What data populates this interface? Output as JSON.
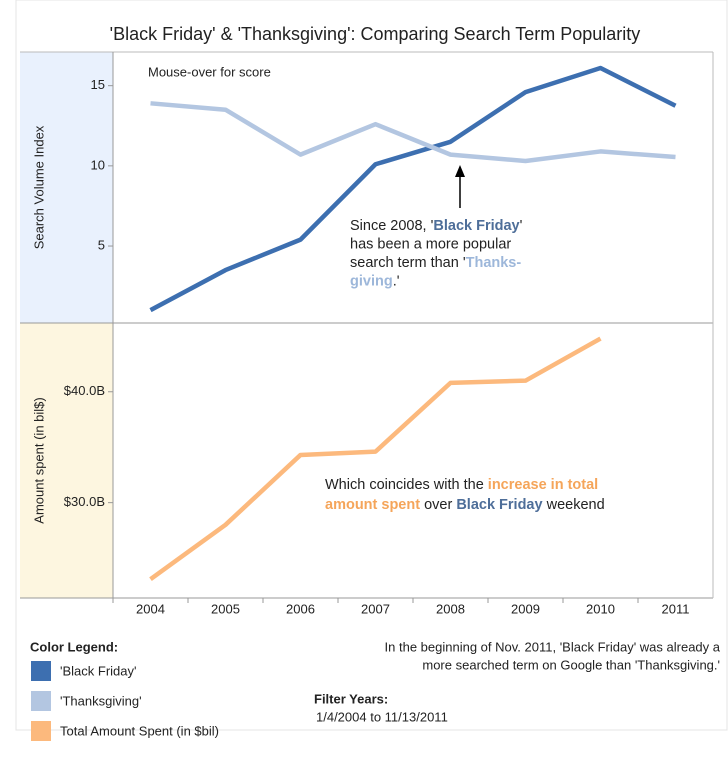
{
  "title": "'Black Friday' & 'Thanksgiving': Comparing Search Term Popularity",
  "chart_data": [
    {
      "type": "line",
      "y_label": "Search Volume Index",
      "note": "Mouse-over for score",
      "categories": [
        "2004",
        "2005",
        "2006",
        "2007",
        "2008",
        "2009",
        "2010",
        "2011"
      ],
      "series": [
        {
          "name": "'Black Friday'",
          "color": "#3d6fb0",
          "values": [
            1.0,
            3.5,
            5.4,
            10.1,
            11.5,
            14.6,
            16.1,
            13.75
          ]
        },
        {
          "name": "'Thanksgiving'",
          "color": "#b3c6e1",
          "values": [
            13.9,
            13.5,
            10.7,
            12.6,
            10.7,
            10.3,
            10.9,
            10.55
          ]
        }
      ],
      "ylim": [
        0.2,
        17.1
      ],
      "yticks": [
        5,
        10,
        15
      ],
      "annotation": [
        [
          {
            "text": "Since 2008, '"
          },
          {
            "text": "Black Friday",
            "color": "#4e6e99",
            "bold": true
          },
          {
            "text": "'"
          }
        ],
        [
          {
            "text": "has been a more popular"
          }
        ],
        [
          {
            "text": "search term than '"
          },
          {
            "text": "Thanks-",
            "color": "#9db7da",
            "bold": true
          }
        ],
        [
          {
            "text": "giving",
            "color": "#9db7da",
            "bold": true
          },
          {
            "text": ".'"
          }
        ]
      ]
    },
    {
      "type": "line",
      "y_label": "Amount spent (in bil$)",
      "categories": [
        "2004",
        "2005",
        "2006",
        "2007",
        "2008",
        "2009",
        "2010",
        "2011"
      ],
      "series": [
        {
          "name": "Total Amount Spent (in $bil)",
          "color": "#fcb97d",
          "values": [
            23.1,
            28.0,
            34.3,
            34.6,
            40.8,
            41.0,
            44.8,
            null
          ]
        }
      ],
      "ylim": [
        21.4,
        46.2
      ],
      "yticks": [
        {
          "value": 30,
          "label": "$30.0B"
        },
        {
          "value": 40,
          "label": "$40.0B"
        }
      ],
      "annotation": [
        [
          {
            "text": "Which coincides with the "
          },
          {
            "text": "increase in total",
            "color": "#f5a55a",
            "bold": true
          }
        ],
        [
          {
            "text": "amount spent",
            "color": "#f5a55a",
            "bold": true
          },
          {
            "text": " over "
          },
          {
            "text": "Black Friday",
            "color": "#4e6e99",
            "bold": true
          },
          {
            "text": " weekend"
          }
        ]
      ]
    }
  ],
  "legend_title": "Color Legend:",
  "footnote": [
    "In the beginning of Nov. 2011, 'Black Friday' was already a",
    "more searched term on Google than 'Thanksgiving.'"
  ],
  "filter": {
    "title": "Filter Years:",
    "range": "1/4/2004 to 11/13/2011"
  }
}
